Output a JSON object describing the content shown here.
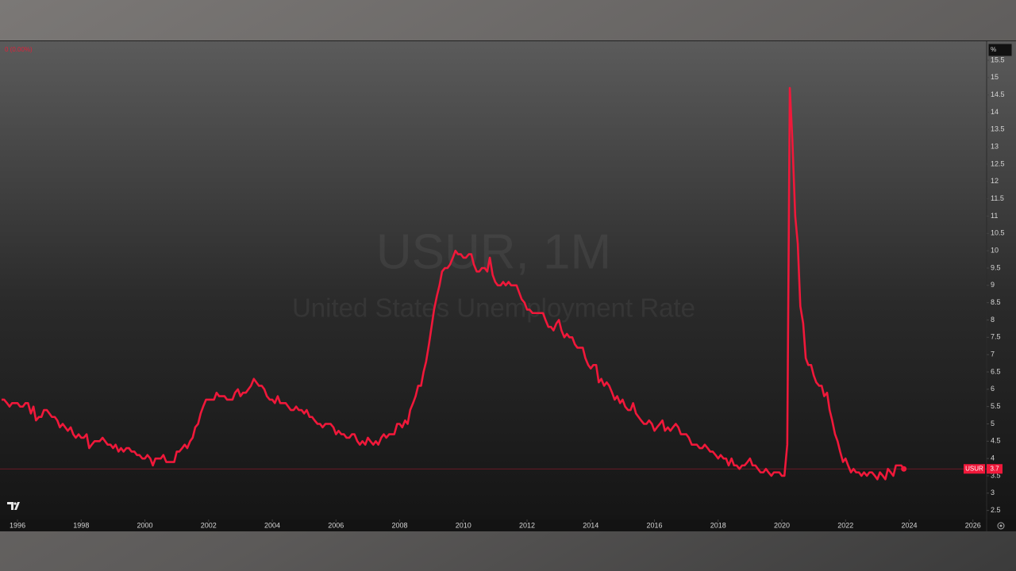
{
  "chart_data": {
    "type": "line",
    "title": "USUR, 1M",
    "subtitle": "United States Unemployment Rate",
    "status": "0 (0.00%)",
    "y_unit": "%",
    "x": [
      1995.5,
      1995.58,
      1995.67,
      1995.75,
      1995.83,
      1995.92,
      1996,
      1996.08,
      1996.17,
      1996.25,
      1996.33,
      1996.42,
      1996.5,
      1996.58,
      1996.67,
      1996.75,
      1996.83,
      1996.92,
      1997,
      1997.08,
      1997.17,
      1997.25,
      1997.33,
      1997.42,
      1997.5,
      1997.58,
      1997.67,
      1997.75,
      1997.83,
      1997.92,
      1998,
      1998.08,
      1998.17,
      1998.25,
      1998.33,
      1998.42,
      1998.5,
      1998.58,
      1998.67,
      1998.75,
      1998.83,
      1998.92,
      1999,
      1999.08,
      1999.17,
      1999.25,
      1999.33,
      1999.42,
      1999.5,
      1999.58,
      1999.67,
      1999.75,
      1999.83,
      1999.92,
      2000,
      2000.08,
      2000.17,
      2000.25,
      2000.33,
      2000.42,
      2000.5,
      2000.58,
      2000.67,
      2000.75,
      2000.83,
      2000.92,
      2001,
      2001.08,
      2001.17,
      2001.25,
      2001.33,
      2001.42,
      2001.5,
      2001.58,
      2001.67,
      2001.75,
      2001.83,
      2001.92,
      2002,
      2002.08,
      2002.17,
      2002.25,
      2002.33,
      2002.42,
      2002.5,
      2002.58,
      2002.67,
      2002.75,
      2002.83,
      2002.92,
      2003,
      2003.08,
      2003.17,
      2003.25,
      2003.33,
      2003.42,
      2003.5,
      2003.58,
      2003.67,
      2003.75,
      2003.83,
      2003.92,
      2004,
      2004.08,
      2004.17,
      2004.25,
      2004.33,
      2004.42,
      2004.5,
      2004.58,
      2004.67,
      2004.75,
      2004.83,
      2004.92,
      2005,
      2005.08,
      2005.17,
      2005.25,
      2005.33,
      2005.42,
      2005.5,
      2005.58,
      2005.67,
      2005.75,
      2005.83,
      2005.92,
      2006,
      2006.08,
      2006.17,
      2006.25,
      2006.33,
      2006.42,
      2006.5,
      2006.58,
      2006.67,
      2006.75,
      2006.83,
      2006.92,
      2007,
      2007.08,
      2007.17,
      2007.25,
      2007.33,
      2007.42,
      2007.5,
      2007.58,
      2007.67,
      2007.75,
      2007.83,
      2007.92,
      2008,
      2008.08,
      2008.17,
      2008.25,
      2008.33,
      2008.42,
      2008.5,
      2008.58,
      2008.67,
      2008.75,
      2008.83,
      2008.92,
      2009,
      2009.08,
      2009.17,
      2009.25,
      2009.33,
      2009.42,
      2009.5,
      2009.58,
      2009.67,
      2009.75,
      2009.83,
      2009.92,
      2010,
      2010.08,
      2010.17,
      2010.25,
      2010.33,
      2010.42,
      2010.5,
      2010.58,
      2010.67,
      2010.75,
      2010.83,
      2010.92,
      2011,
      2011.08,
      2011.17,
      2011.25,
      2011.33,
      2011.42,
      2011.5,
      2011.58,
      2011.67,
      2011.75,
      2011.83,
      2011.92,
      2012,
      2012.08,
      2012.17,
      2012.25,
      2012.33,
      2012.42,
      2012.5,
      2012.58,
      2012.67,
      2012.75,
      2012.83,
      2012.92,
      2013,
      2013.08,
      2013.17,
      2013.25,
      2013.33,
      2013.42,
      2013.5,
      2013.58,
      2013.67,
      2013.75,
      2013.83,
      2013.92,
      2014,
      2014.08,
      2014.17,
      2014.25,
      2014.33,
      2014.42,
      2014.5,
      2014.58,
      2014.67,
      2014.75,
      2014.83,
      2014.92,
      2015,
      2015.08,
      2015.17,
      2015.25,
      2015.33,
      2015.42,
      2015.5,
      2015.58,
      2015.67,
      2015.75,
      2015.83,
      2015.92,
      2016,
      2016.08,
      2016.17,
      2016.25,
      2016.33,
      2016.42,
      2016.5,
      2016.58,
      2016.67,
      2016.75,
      2016.83,
      2016.92,
      2017,
      2017.08,
      2017.17,
      2017.25,
      2017.33,
      2017.42,
      2017.5,
      2017.58,
      2017.67,
      2017.75,
      2017.83,
      2017.92,
      2018,
      2018.08,
      2018.17,
      2018.25,
      2018.33,
      2018.42,
      2018.5,
      2018.58,
      2018.67,
      2018.75,
      2018.83,
      2018.92,
      2019,
      2019.08,
      2019.17,
      2019.25,
      2019.33,
      2019.42,
      2019.5,
      2019.58,
      2019.67,
      2019.75,
      2019.83,
      2019.92,
      2020,
      2020.08,
      2020.17,
      2020.25,
      2020.33,
      2020.42,
      2020.5,
      2020.58,
      2020.67,
      2020.75,
      2020.83,
      2020.92,
      2021,
      2021.08,
      2021.17,
      2021.25,
      2021.33,
      2021.42,
      2021.5,
      2021.58,
      2021.67,
      2021.75,
      2021.83,
      2021.92,
      2022,
      2022.08,
      2022.17,
      2022.25,
      2022.33,
      2022.42,
      2022.5,
      2022.58,
      2022.67,
      2022.75,
      2022.83,
      2022.92,
      2023,
      2023.08,
      2023.17,
      2023.25,
      2023.33,
      2023.42,
      2023.5,
      2023.58,
      2023.67,
      2023.75,
      2023.83
    ],
    "series": [
      {
        "name": "USUR",
        "color": "#f0183a",
        "values": [
          5.7,
          5.7,
          5.6,
          5.5,
          5.6,
          5.6,
          5.6,
          5.5,
          5.5,
          5.6,
          5.6,
          5.3,
          5.5,
          5.1,
          5.2,
          5.2,
          5.4,
          5.4,
          5.3,
          5.2,
          5.2,
          5.1,
          4.9,
          5.0,
          4.9,
          4.8,
          4.9,
          4.7,
          4.6,
          4.7,
          4.6,
          4.6,
          4.7,
          4.3,
          4.4,
          4.5,
          4.5,
          4.5,
          4.6,
          4.5,
          4.4,
          4.4,
          4.3,
          4.4,
          4.2,
          4.3,
          4.2,
          4.3,
          4.3,
          4.2,
          4.2,
          4.1,
          4.1,
          4.0,
          4.0,
          4.1,
          4.0,
          3.8,
          4.0,
          4.0,
          4.0,
          4.1,
          3.9,
          3.9,
          3.9,
          3.9,
          4.2,
          4.2,
          4.3,
          4.4,
          4.3,
          4.5,
          4.6,
          4.9,
          5.0,
          5.3,
          5.5,
          5.7,
          5.7,
          5.7,
          5.7,
          5.9,
          5.8,
          5.8,
          5.8,
          5.7,
          5.7,
          5.7,
          5.9,
          6.0,
          5.8,
          5.9,
          5.9,
          6.0,
          6.1,
          6.3,
          6.2,
          6.1,
          6.1,
          6.0,
          5.8,
          5.7,
          5.7,
          5.6,
          5.8,
          5.6,
          5.6,
          5.6,
          5.5,
          5.4,
          5.4,
          5.5,
          5.4,
          5.4,
          5.3,
          5.4,
          5.2,
          5.2,
          5.1,
          5.0,
          5.0,
          4.9,
          5.0,
          5.0,
          5.0,
          4.9,
          4.7,
          4.8,
          4.7,
          4.7,
          4.6,
          4.6,
          4.7,
          4.7,
          4.5,
          4.4,
          4.5,
          4.4,
          4.6,
          4.5,
          4.4,
          4.5,
          4.4,
          4.6,
          4.7,
          4.6,
          4.7,
          4.7,
          4.7,
          5.0,
          5.0,
          4.9,
          5.1,
          5.0,
          5.4,
          5.6,
          5.8,
          6.1,
          6.1,
          6.5,
          6.8,
          7.3,
          7.8,
          8.3,
          8.7,
          9.0,
          9.4,
          9.5,
          9.5,
          9.6,
          9.8,
          10.0,
          9.9,
          9.9,
          9.8,
          9.8,
          9.9,
          9.9,
          9.6,
          9.4,
          9.4,
          9.5,
          9.5,
          9.4,
          9.8,
          9.3,
          9.1,
          9.0,
          9.0,
          9.1,
          9.0,
          9.1,
          9.0,
          9.0,
          9.0,
          8.8,
          8.6,
          8.5,
          8.3,
          8.3,
          8.2,
          8.2,
          8.2,
          8.2,
          8.2,
          8.0,
          7.8,
          7.8,
          7.7,
          7.9,
          8.0,
          7.7,
          7.5,
          7.6,
          7.5,
          7.5,
          7.3,
          7.2,
          7.2,
          7.2,
          6.9,
          6.7,
          6.6,
          6.7,
          6.7,
          6.2,
          6.3,
          6.1,
          6.2,
          6.1,
          5.9,
          5.7,
          5.8,
          5.6,
          5.7,
          5.5,
          5.4,
          5.4,
          5.6,
          5.3,
          5.2,
          5.1,
          5.0,
          5.0,
          5.1,
          5.0,
          4.8,
          4.9,
          5.0,
          5.1,
          4.8,
          4.9,
          4.8,
          4.9,
          5.0,
          4.9,
          4.7,
          4.7,
          4.7,
          4.6,
          4.4,
          4.4,
          4.4,
          4.3,
          4.3,
          4.4,
          4.3,
          4.2,
          4.2,
          4.1,
          4.0,
          4.1,
          4.0,
          4.0,
          3.8,
          4.0,
          3.8,
          3.8,
          3.7,
          3.8,
          3.8,
          3.9,
          4.0,
          3.8,
          3.8,
          3.7,
          3.6,
          3.6,
          3.7,
          3.6,
          3.5,
          3.6,
          3.6,
          3.6,
          3.5,
          3.5,
          4.4,
          14.7,
          13.2,
          11.0,
          10.2,
          8.4,
          7.9,
          6.9,
          6.7,
          6.7,
          6.4,
          6.2,
          6.1,
          6.1,
          5.8,
          5.9,
          5.4,
          5.1,
          4.7,
          4.5,
          4.2,
          3.9,
          4.0,
          3.8,
          3.6,
          3.7,
          3.6,
          3.6,
          3.5,
          3.6,
          3.5,
          3.6,
          3.6,
          3.5,
          3.4,
          3.6,
          3.5,
          3.4,
          3.7,
          3.6,
          3.5,
          3.8,
          3.8,
          3.8,
          3.7
        ]
      }
    ],
    "xlim": [
      1995.45,
      2026.43
    ],
    "ylim": [
      2.24,
      16.05
    ],
    "xticks": [
      1996,
      1998,
      2000,
      2002,
      2004,
      2006,
      2008,
      2010,
      2012,
      2014,
      2016,
      2018,
      2020,
      2022,
      2024,
      2026
    ],
    "yticks": [
      2.5,
      3,
      3.5,
      4,
      4.5,
      5,
      5.5,
      6,
      6.5,
      7,
      7.5,
      8,
      8.5,
      9,
      9.5,
      10,
      10.5,
      11,
      11.5,
      12,
      12.5,
      13,
      13.5,
      14,
      14.5,
      15,
      15.5
    ]
  }
}
